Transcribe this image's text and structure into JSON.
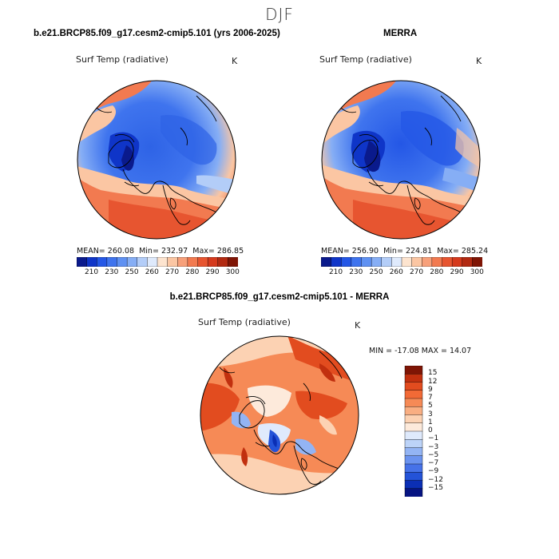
{
  "season": "DJF",
  "panels": {
    "model": {
      "title": "b.e21.BRCP85.f09_g17.cesm2-cmip5.101 (yrs 2006-2025)",
      "variable": "Surf Temp (radiative)",
      "units": "K",
      "stats": {
        "mean_label": "MEAN=",
        "mean": "260.08",
        "min_label": "Min=",
        "min": "232.97",
        "max_label": "Max=",
        "max": "286.85"
      }
    },
    "obs": {
      "title": "MERRA",
      "variable": "Surf Temp (radiative)",
      "units": "K",
      "stats": {
        "mean_label": "MEAN=",
        "mean": "256.90",
        "min_label": "Min=",
        "min": "224.81",
        "max_label": "Max=",
        "max": "285.24"
      }
    },
    "diff": {
      "title": "b.e21.BRCP85.f09_g17.cesm2-cmip5.101 - MERRA",
      "variable": "Surf Temp (radiative)",
      "units": "K",
      "minmax": "MIN = -17.08 MAX =  14.07"
    }
  },
  "abs_colorbar": {
    "colors": [
      "#0a1a8c",
      "#0f35c8",
      "#2457e6",
      "#3f74ee",
      "#5f91f2",
      "#86aef5",
      "#b3cdf8",
      "#dfeafc",
      "#fde4cf",
      "#fbc6a3",
      "#f7a07a",
      "#f27a50",
      "#e75530",
      "#d53a1d",
      "#b22a12",
      "#7f1505"
    ],
    "labels": [
      "210",
      "230",
      "250",
      "260",
      "270",
      "280",
      "290",
      "300"
    ]
  },
  "diff_colorbar": {
    "colors": [
      "#7f1505",
      "#c1300f",
      "#e24c1f",
      "#f26a36",
      "#f68a56",
      "#f9ae82",
      "#fcd2b3",
      "#fdeadb",
      "#dfeafc",
      "#bcd3f8",
      "#93b4f4",
      "#6b93ef",
      "#4672e8",
      "#2453d8",
      "#0b2fb5",
      "#061482"
    ],
    "labels": [
      "15",
      "12",
      "9",
      "7",
      "5",
      "3",
      "1",
      "0",
      "−1",
      "−3",
      "−5",
      "−7",
      "−9",
      "−12",
      "−15"
    ]
  }
}
